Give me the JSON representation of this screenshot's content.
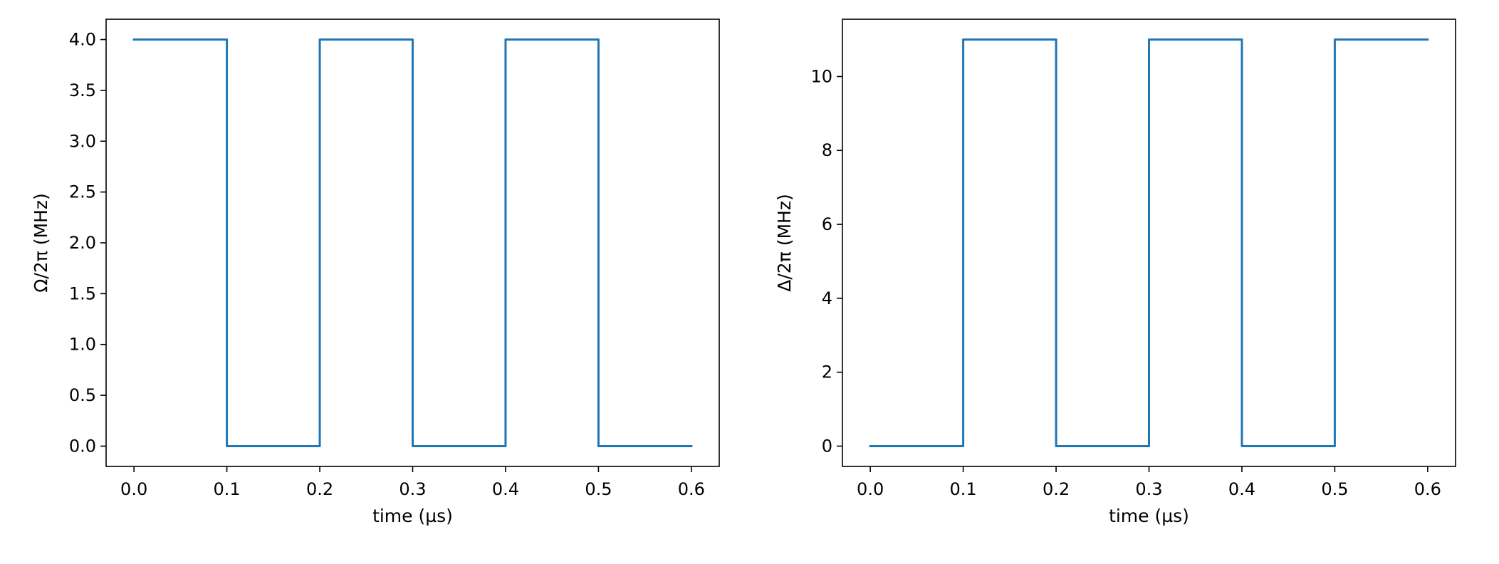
{
  "chart_data": [
    {
      "type": "line",
      "line_style": "step",
      "xlabel": "time (µs)",
      "ylabel": "Ω/2π (MHz)",
      "xlim": [
        -0.03,
        0.63
      ],
      "ylim": [
        -0.2,
        4.2
      ],
      "xticks": [
        "0.0",
        "0.1",
        "0.2",
        "0.3",
        "0.4",
        "0.5",
        "0.6"
      ],
      "yticks": [
        "0.0",
        "0.5",
        "1.0",
        "1.5",
        "2.0",
        "2.5",
        "3.0",
        "3.5",
        "4.0"
      ],
      "color": "#1f77b4",
      "grid": false,
      "series": [
        {
          "x": [
            0.0,
            0.1,
            0.1,
            0.2,
            0.2,
            0.3,
            0.3,
            0.4,
            0.4,
            0.5,
            0.5,
            0.6
          ],
          "y": [
            4,
            4,
            0,
            0,
            4,
            4,
            0,
            0,
            4,
            4,
            0,
            0
          ]
        }
      ]
    },
    {
      "type": "line",
      "line_style": "step",
      "xlabel": "time (µs)",
      "ylabel": "Δ/2π (MHz)",
      "xlim": [
        -0.03,
        0.63
      ],
      "ylim": [
        -0.55,
        11.55
      ],
      "xticks": [
        "0.0",
        "0.1",
        "0.2",
        "0.3",
        "0.4",
        "0.5",
        "0.6"
      ],
      "yticks": [
        "0",
        "2",
        "4",
        "6",
        "8",
        "10"
      ],
      "color": "#1f77b4",
      "grid": false,
      "series": [
        {
          "x": [
            0.0,
            0.1,
            0.1,
            0.2,
            0.2,
            0.3,
            0.3,
            0.4,
            0.4,
            0.5,
            0.5,
            0.6
          ],
          "y": [
            0,
            0,
            11,
            11,
            0,
            0,
            11,
            11,
            0,
            0,
            11,
            11
          ]
        }
      ]
    }
  ]
}
